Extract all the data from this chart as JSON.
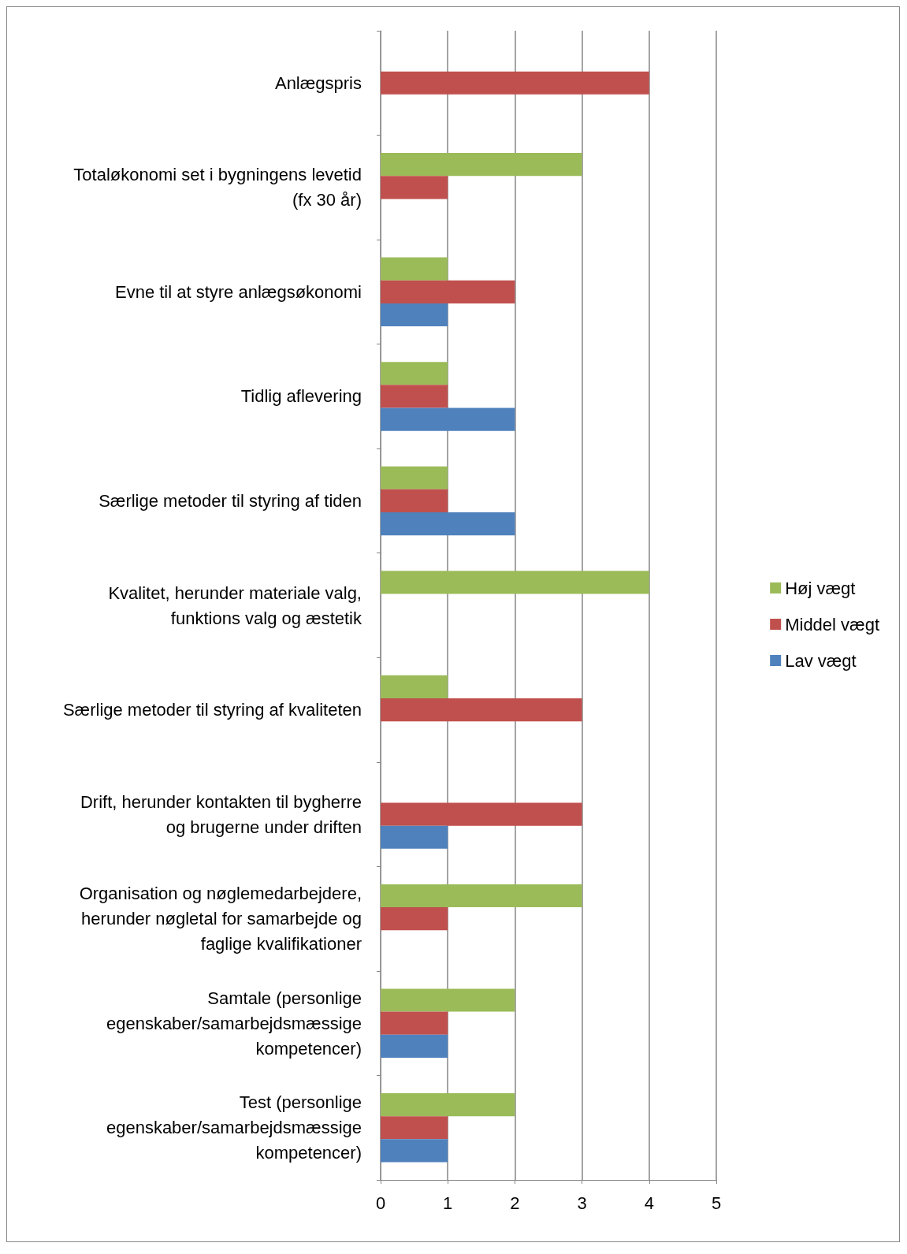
{
  "chart_data": {
    "type": "bar",
    "orientation": "horizontal",
    "categories": [
      "Anlægspris",
      "Totaløkonomi set i bygningens levetid\n(fx 30 år)",
      "Evne til at styre anlægsøkonomi",
      "Tidlig aflevering",
      "Særlige metoder til styring af tiden",
      "Kvalitet, herunder materiale valg,\nfunktions valg og æstetik",
      "Særlige metoder til styring af kvaliteten",
      "Drift, herunder kontakten til bygherre\nog brugerne under driften",
      "Organisation og nøglemedarbejdere,\nherunder nøgletal for samarbejde og\nfaglige kvalifikationer",
      "Samtale (personlige\negenskaber/samarbejdsmæssige\nkompetencer)",
      "Test (personlige\negenskaber/samarbejdsmæssige\nkompetencer)"
    ],
    "series": [
      {
        "name": "Høj vægt",
        "color": "#9bbb59",
        "values": [
          null,
          3,
          1,
          1,
          1,
          4,
          1,
          null,
          3,
          2,
          2
        ]
      },
      {
        "name": "Middel vægt",
        "color": "#c0504d",
        "values": [
          4,
          1,
          2,
          1,
          1,
          null,
          3,
          3,
          1,
          1,
          1
        ]
      },
      {
        "name": "Lav vægt",
        "color": "#4f81bd",
        "values": [
          null,
          null,
          1,
          2,
          2,
          null,
          null,
          1,
          null,
          1,
          1
        ]
      }
    ],
    "xlim": [
      0,
      5
    ],
    "xticks": [
      0,
      1,
      2,
      3,
      4,
      5
    ],
    "grid": "x",
    "legend": "right"
  }
}
